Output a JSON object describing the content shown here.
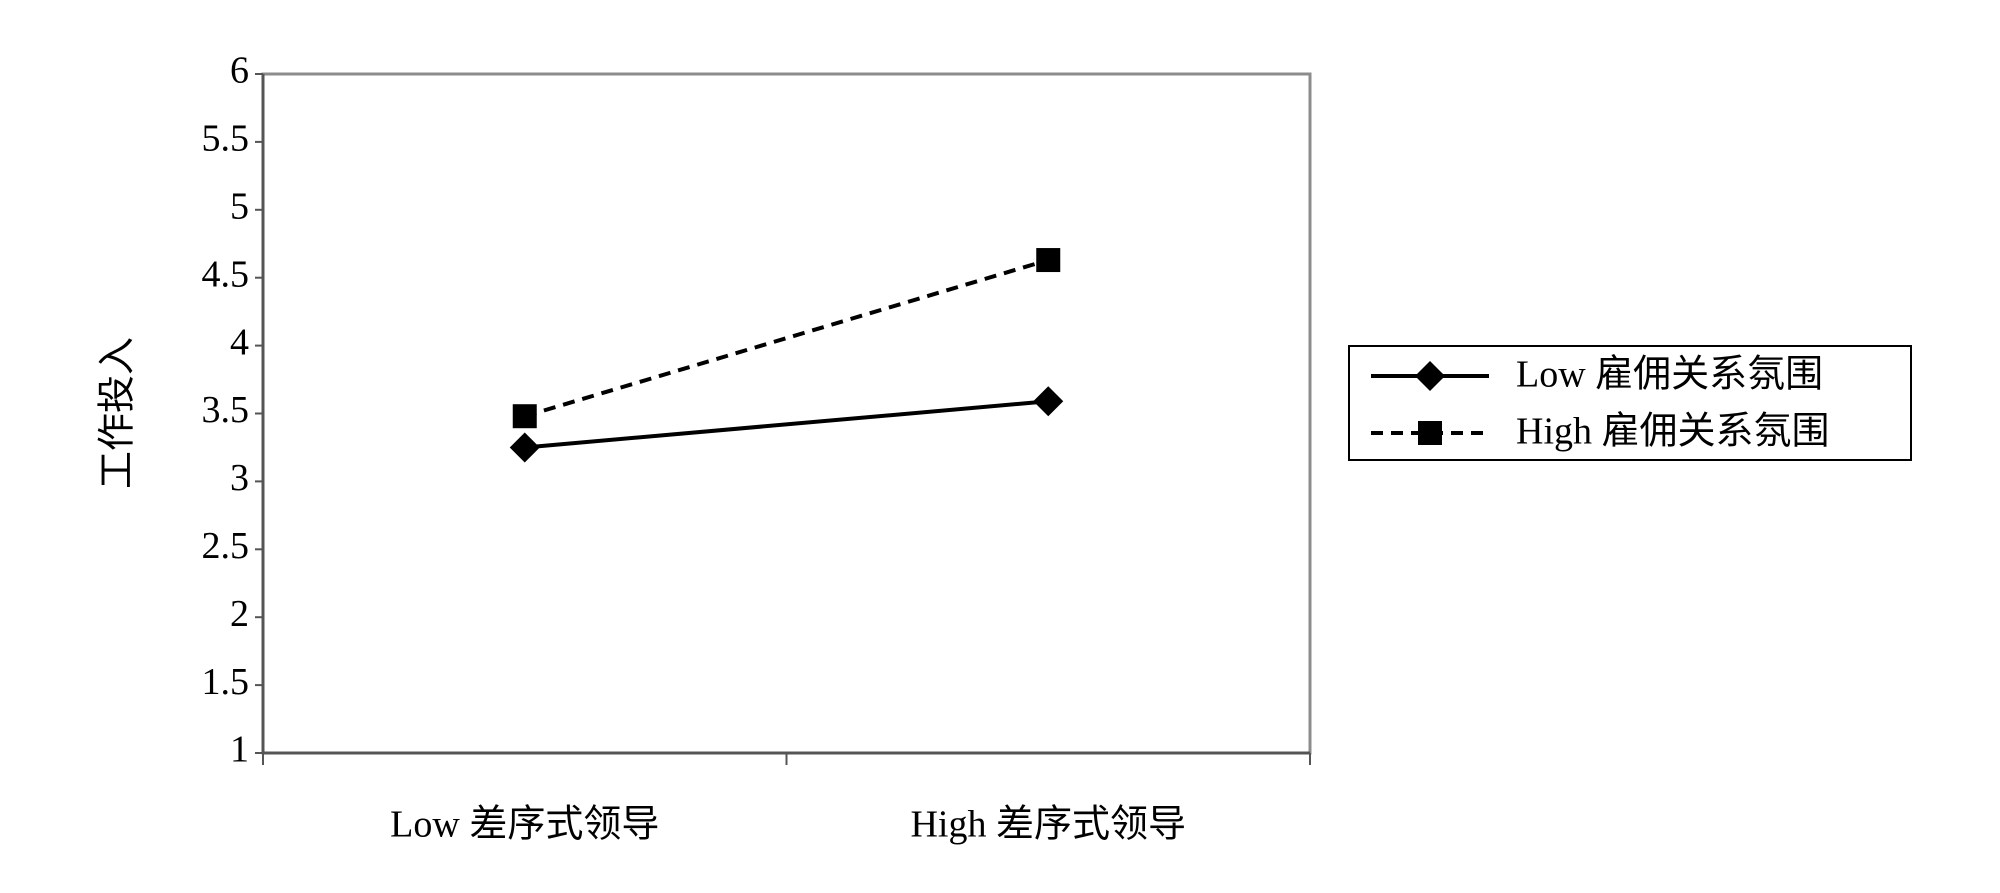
{
  "chart_data": {
    "type": "line",
    "y_label": "工作投入",
    "categories": [
      "Low 差序式领导",
      "High 差序式领导"
    ],
    "series": [
      {
        "name": "Low 雇佣关系氛围",
        "color": "#000000",
        "line_style": "solid",
        "marker": "diamond",
        "values": [
          3.25,
          3.59
        ]
      },
      {
        "name": "High 雇佣关系氛围",
        "color": "#000000",
        "line_style": "dashed",
        "marker": "square",
        "values": [
          3.48,
          4.63
        ]
      }
    ],
    "ylim": [
      1,
      6
    ],
    "yticks": [
      1,
      1.5,
      2,
      2.5,
      3,
      3.5,
      4,
      4.5,
      5,
      5.5,
      6
    ],
    "grid": false,
    "legend": "right"
  }
}
